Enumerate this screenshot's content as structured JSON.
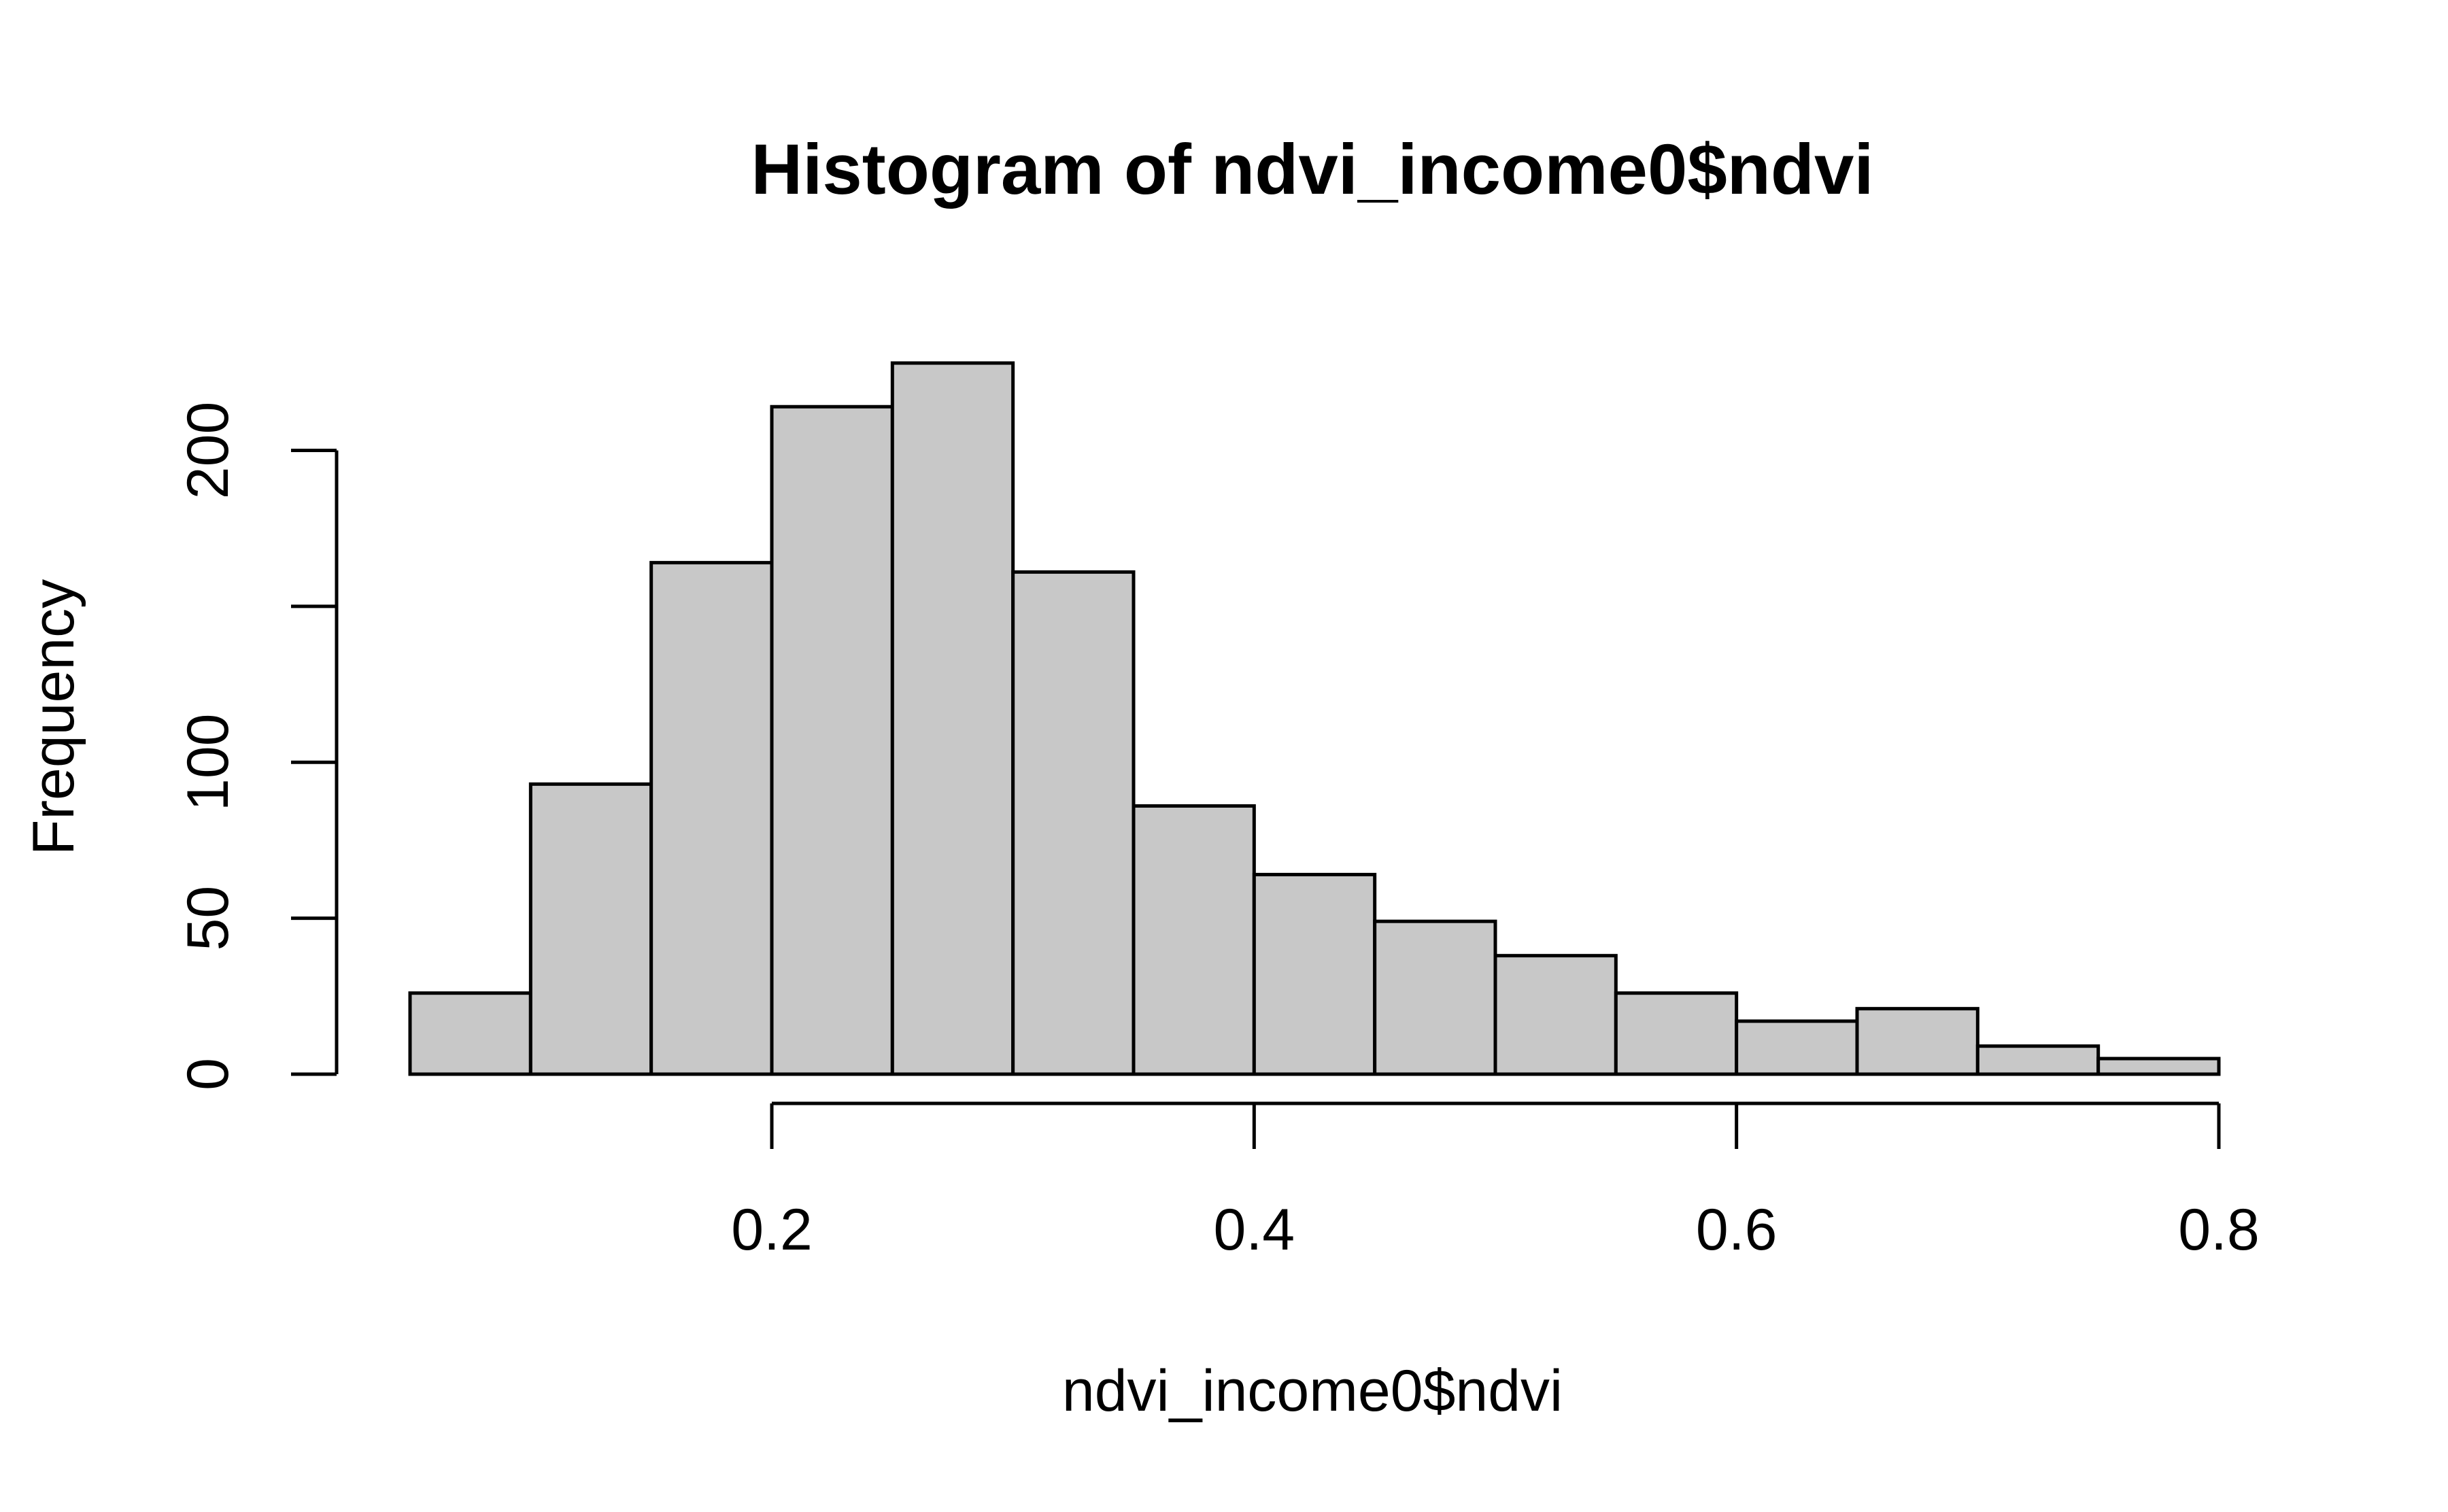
{
  "chart_data": {
    "type": "bar",
    "title": "Histogram of ndvi_income0$ndvi",
    "xlabel": "ndvi_income0$ndvi",
    "ylabel": "Frequency",
    "bins": [
      {
        "from": 0.05,
        "to": 0.1,
        "count": 26
      },
      {
        "from": 0.1,
        "to": 0.15,
        "count": 93
      },
      {
        "from": 0.15,
        "to": 0.2,
        "count": 164
      },
      {
        "from": 0.2,
        "to": 0.25,
        "count": 214
      },
      {
        "from": 0.25,
        "to": 0.3,
        "count": 228
      },
      {
        "from": 0.3,
        "to": 0.35,
        "count": 161
      },
      {
        "from": 0.35,
        "to": 0.4,
        "count": 86
      },
      {
        "from": 0.4,
        "to": 0.45,
        "count": 64
      },
      {
        "from": 0.45,
        "to": 0.5,
        "count": 49
      },
      {
        "from": 0.5,
        "to": 0.55,
        "count": 38
      },
      {
        "from": 0.55,
        "to": 0.6,
        "count": 26
      },
      {
        "from": 0.6,
        "to": 0.65,
        "count": 17
      },
      {
        "from": 0.65,
        "to": 0.7,
        "count": 21
      },
      {
        "from": 0.7,
        "to": 0.75,
        "count": 9
      },
      {
        "from": 0.75,
        "to": 0.8,
        "count": 5
      }
    ],
    "x_ticks": [
      0.2,
      0.4,
      0.6,
      0.8
    ],
    "x_tick_labels": [
      "0.2",
      "0.4",
      "0.6",
      "0.8"
    ],
    "y_ticks": [
      0,
      50,
      100,
      150,
      200
    ],
    "y_tick_labels": [
      "0",
      "50",
      "100",
      "",
      "200"
    ],
    "xlim": [
      0.05,
      0.8
    ],
    "ylim": [
      0,
      228
    ],
    "grid": false,
    "bar_color": "#c8c8c8",
    "edge_color": "#000000"
  }
}
